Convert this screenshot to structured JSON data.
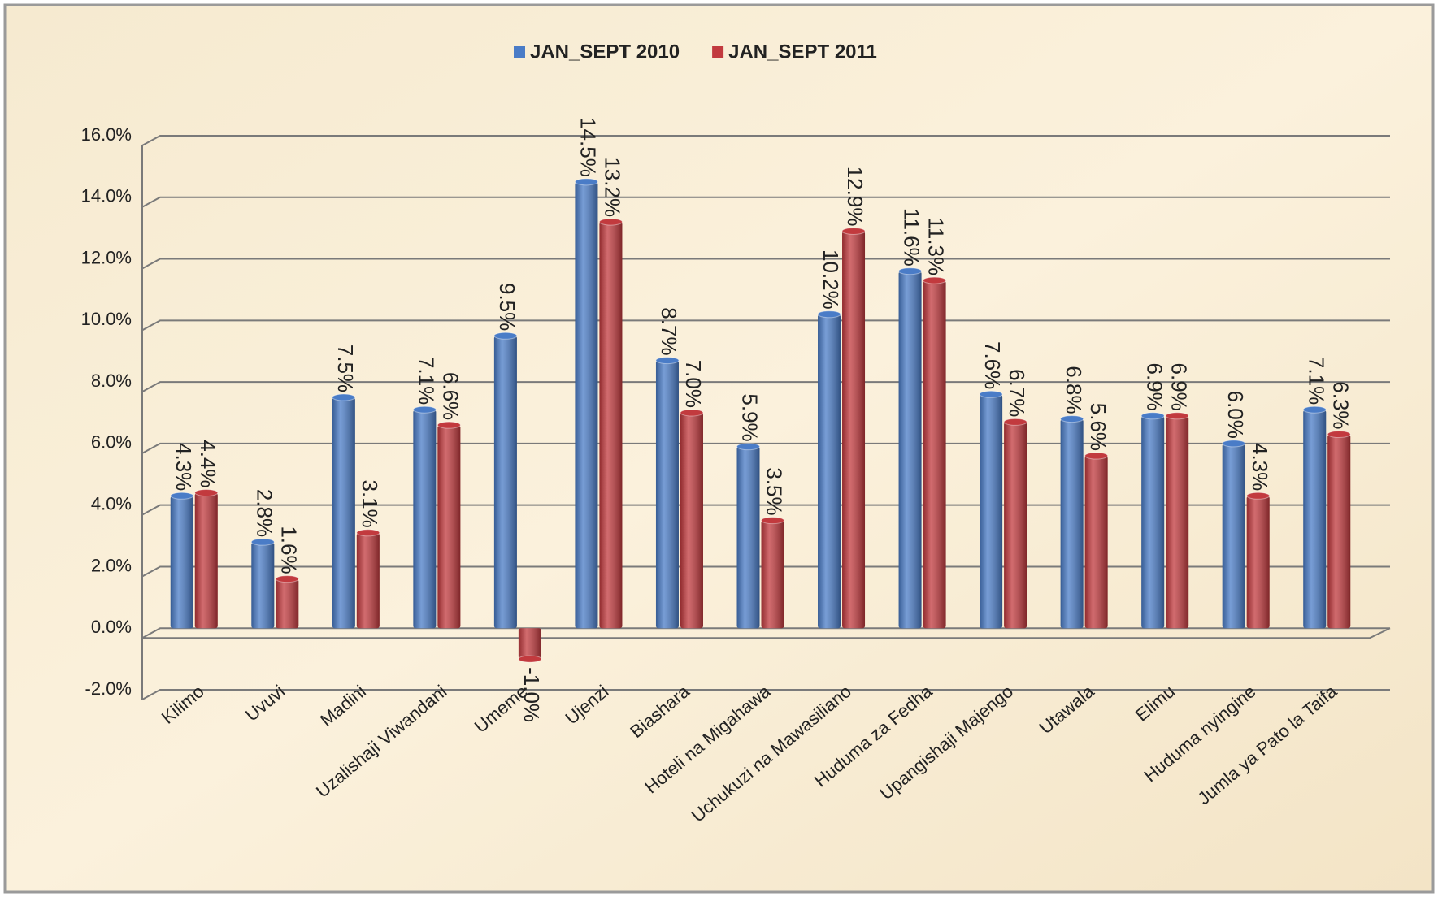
{
  "chart_data": {
    "type": "bar",
    "categories": [
      "Kilimo",
      "Uvuvi",
      "Madini",
      "Uzalishaji Viwandani",
      "Umeme",
      "Ujenzi",
      "Biashara",
      "Hoteli na Migahawa",
      "Uchukuzi na Mawasiliano",
      "Huduma za Fedha",
      "Upangishaji Majengo",
      "Utawala",
      "Elimu",
      "Huduma nyingine",
      "Jumla ya Pato la Taifa"
    ],
    "series": [
      {
        "name": "JAN_SEPT 2010",
        "color": "#4a7cc7",
        "values": [
          4.3,
          2.8,
          7.5,
          7.1,
          9.5,
          14.5,
          8.7,
          5.9,
          10.2,
          11.6,
          7.6,
          6.8,
          6.9,
          6.0,
          7.1
        ],
        "value_labels": [
          "4.3%",
          "2.8%",
          "7.5%",
          "7.1%",
          "9.5%",
          "14.5%",
          "8.7%",
          "5.9%",
          "10.2%",
          "11.6%",
          "7.6%",
          "6.8%",
          "6.9%",
          "6.0%",
          "7.1%"
        ]
      },
      {
        "name": "JAN_SEPT 2011",
        "color": "#c23a3e",
        "values": [
          4.4,
          1.6,
          3.1,
          6.6,
          -1.0,
          13.2,
          7.0,
          3.5,
          12.9,
          11.3,
          6.7,
          5.6,
          6.9,
          4.3,
          6.3
        ],
        "value_labels": [
          "4.4%",
          "1.6%",
          "3.1%",
          "6.6%",
          "-1.0%",
          "13.2%",
          "7.0%",
          "3.5%",
          "12.9%",
          "11.3%",
          "6.7%",
          "5.6%",
          "6.9%",
          "4.3%",
          "6.3%"
        ]
      }
    ],
    "ylim": [
      -2,
      16
    ],
    "yticks": [
      {
        "value": -2,
        "label": "-2.0%"
      },
      {
        "value": 0,
        "label": "0.0%"
      },
      {
        "value": 2,
        "label": "2.0%"
      },
      {
        "value": 4,
        "label": "4.0%"
      },
      {
        "value": 6,
        "label": "6.0%"
      },
      {
        "value": 8,
        "label": "8.0%"
      },
      {
        "value": 10,
        "label": "10.0%"
      },
      {
        "value": 12,
        "label": "12.0%"
      },
      {
        "value": 14,
        "label": "14.0%"
      },
      {
        "value": 16,
        "label": "16.0%"
      }
    ],
    "grid": true,
    "legend": "top"
  }
}
